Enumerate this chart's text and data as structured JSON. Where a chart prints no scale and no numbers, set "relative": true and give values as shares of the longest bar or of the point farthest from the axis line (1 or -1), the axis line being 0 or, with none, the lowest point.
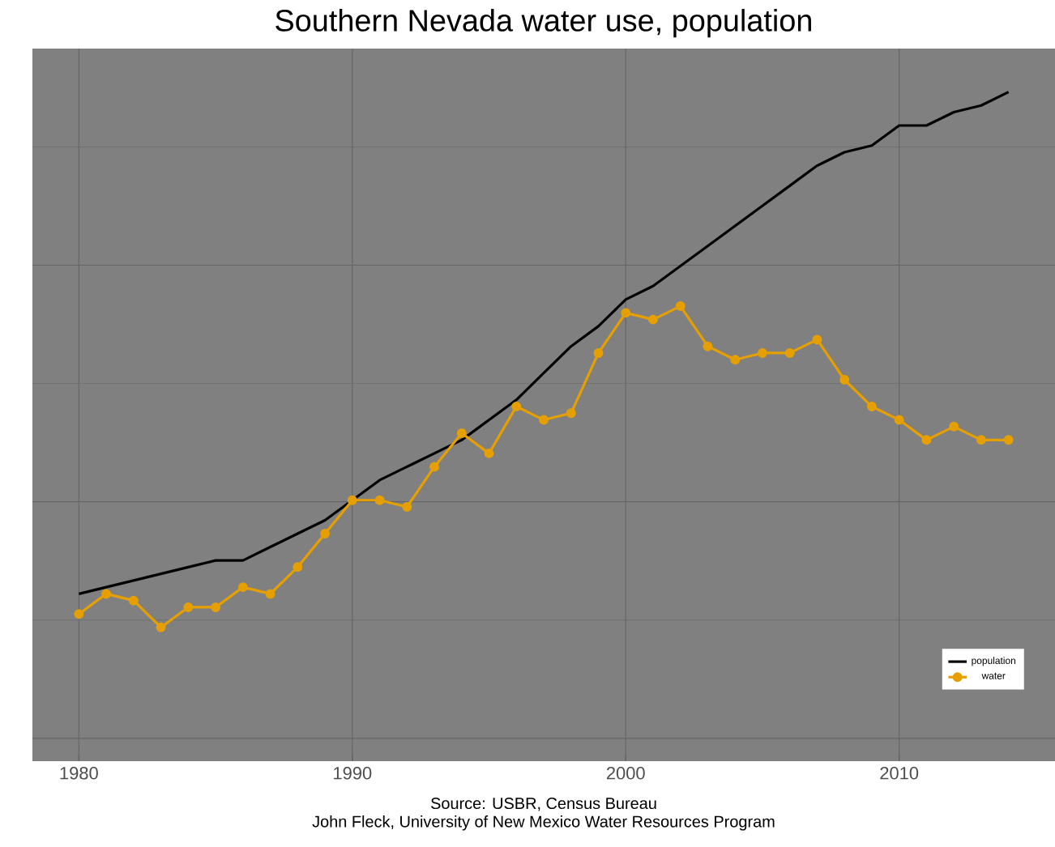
{
  "chart_data": {
    "type": "line",
    "title": "Southern Nevada water use, population",
    "annotations": [
      "Source: USBR, Census Bureau",
      "John Fleck, University of New Mexico Water Resources Program"
    ],
    "relative": true,
    "x": [
      1980,
      1981,
      1982,
      1983,
      1984,
      1985,
      1986,
      1987,
      1988,
      1989,
      1990,
      1991,
      1992,
      1993,
      1994,
      1995,
      1996,
      1997,
      1998,
      1999,
      2000,
      2001,
      2002,
      2003,
      2004,
      2005,
      2006,
      2007,
      2008,
      2009,
      2010,
      2011,
      2012,
      2013,
      2014
    ],
    "xlim": [
      1978.3,
      2015.7
    ],
    "xticks": [
      1980,
      1990,
      2000,
      2010
    ],
    "grid": true,
    "legend": "bottom right",
    "series": [
      {
        "name": "population",
        "color": "#000000",
        "marker": "none",
        "values": [
          0.25,
          0.26,
          0.27,
          0.28,
          0.29,
          0.3,
          0.3,
          0.32,
          0.34,
          0.36,
          0.39,
          0.42,
          0.44,
          0.46,
          0.48,
          0.51,
          0.54,
          0.58,
          0.62,
          0.65,
          0.69,
          0.71,
          0.74,
          0.77,
          0.8,
          0.83,
          0.86,
          0.89,
          0.91,
          0.92,
          0.95,
          0.95,
          0.97,
          0.98,
          1.0
        ]
      },
      {
        "name": "water",
        "color": "#e69f00",
        "marker": "circle",
        "values": [
          0.22,
          0.25,
          0.24,
          0.2,
          0.23,
          0.23,
          0.26,
          0.25,
          0.29,
          0.34,
          0.39,
          0.39,
          0.38,
          0.44,
          0.49,
          0.46,
          0.53,
          0.51,
          0.52,
          0.61,
          0.67,
          0.66,
          0.68,
          0.62,
          0.6,
          0.61,
          0.61,
          0.63,
          0.57,
          0.53,
          0.51,
          0.48,
          0.5,
          0.48,
          0.48
        ]
      }
    ]
  }
}
